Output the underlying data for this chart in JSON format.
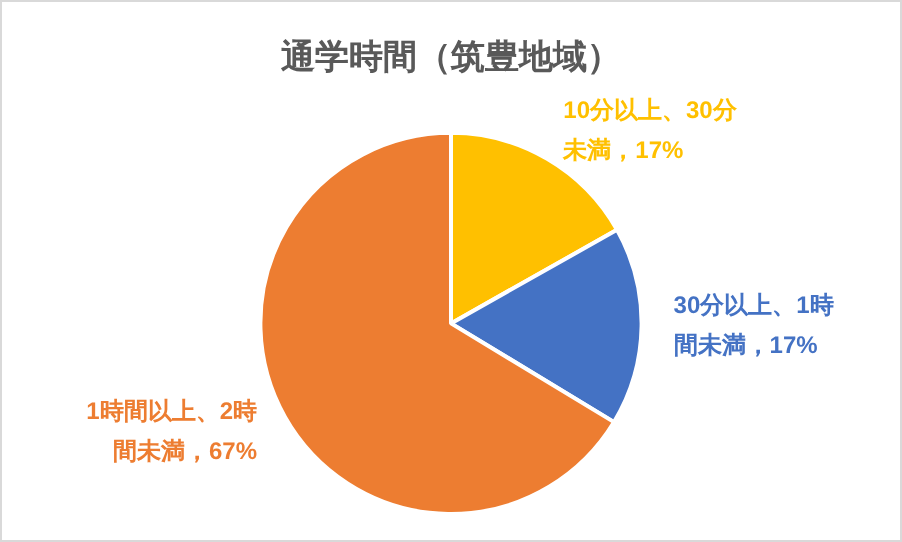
{
  "chart_data": {
    "type": "pie",
    "title": "通学時間（筑豊地域）",
    "categories": [
      "10分以上、30分未満",
      "30分以上、1時間未満",
      "1時間以上、2時間未満"
    ],
    "values": [
      17,
      17,
      67
    ],
    "value_labels": [
      "17%",
      "17%",
      "67%"
    ],
    "colors": [
      "#ffc000",
      "#4472c4",
      "#ed7d31"
    ],
    "legend": false
  }
}
